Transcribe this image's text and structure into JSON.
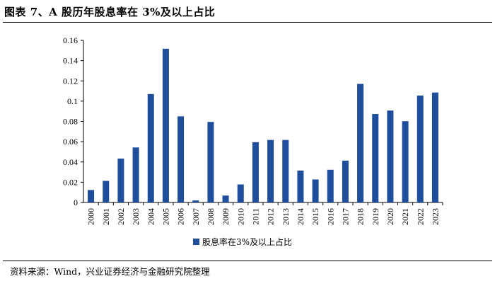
{
  "page": {
    "title": "图表 7、A 股历年股息率在 3%及以上占比",
    "source": "资料来源：Wind，兴业证券经济与金融研究院整理"
  },
  "chart_data": {
    "type": "bar",
    "title": "",
    "xlabel": "",
    "ylabel": "",
    "ylim": [
      0,
      0.16
    ],
    "yticks": [
      0,
      0.02,
      0.04,
      0.06,
      0.08,
      0.1,
      0.12,
      0.14,
      0.16
    ],
    "ytick_labels": [
      "0",
      "0.02",
      "0.04",
      "0.06",
      "0.08",
      "0.1",
      "0.12",
      "0.14",
      "0.16"
    ],
    "grid": false,
    "legend_position": "bottom-center",
    "bar_color": "#1F4E9C",
    "categories": [
      "2000",
      "2001",
      "2002",
      "2003",
      "2004",
      "2005",
      "2006",
      "2007",
      "2008",
      "2009",
      "2010",
      "2011",
      "2012",
      "2013",
      "2014",
      "2015",
      "2016",
      "2017",
      "2018",
      "2019",
      "2020",
      "2021",
      "2022",
      "2023"
    ],
    "series": [
      {
        "name": "股息率在3%及以上占比",
        "values": [
          0.0123,
          0.0213,
          0.0433,
          0.0543,
          0.107,
          0.1517,
          0.085,
          0.002,
          0.0795,
          0.0068,
          0.0178,
          0.0595,
          0.0617,
          0.0617,
          0.0315,
          0.0227,
          0.0323,
          0.0413,
          0.117,
          0.0873,
          0.0907,
          0.0802,
          0.1055,
          0.1085
        ]
      }
    ]
  }
}
